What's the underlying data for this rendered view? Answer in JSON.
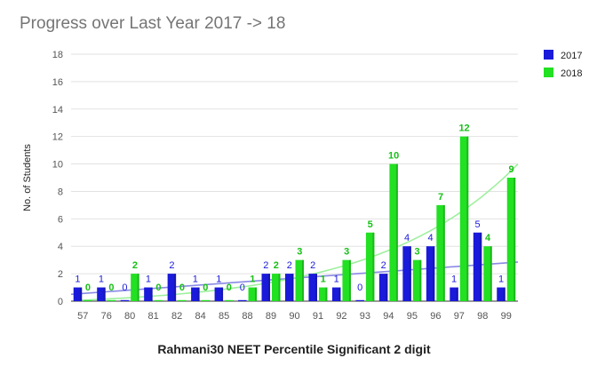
{
  "chart_data": {
    "type": "bar",
    "title": "Progress over Last Year 2017 -> 18",
    "xlabel": "Rahmani30 NEET Percentile Significant 2 digit",
    "ylabel": "No. of Students",
    "ylim": [
      0,
      18
    ],
    "yticks": [
      0,
      2,
      4,
      6,
      8,
      10,
      12,
      14,
      16,
      18
    ],
    "grid": true,
    "legend_position": "right",
    "categories": [
      "57",
      "76",
      "80",
      "81",
      "82",
      "84",
      "85",
      "88",
      "89",
      "90",
      "91",
      "92",
      "93",
      "94",
      "95",
      "96",
      "97",
      "98",
      "99"
    ],
    "series": [
      {
        "name": "2017",
        "color": "#1a1adb",
        "label_color": "#1a1adb",
        "values": [
          1,
          1,
          0,
          1,
          2,
          1,
          1,
          0,
          2,
          2,
          2,
          1,
          0,
          2,
          4,
          4,
          1,
          5,
          1
        ],
        "trend_color": "#8a8ae6",
        "trend_start": 0.5,
        "trend_end": 2.85
      },
      {
        "name": "2018",
        "color": "#22e022",
        "label_color": "#16c016",
        "values": [
          0,
          0,
          2,
          0,
          0,
          0,
          0,
          1,
          2,
          3,
          1,
          3,
          5,
          10,
          3,
          7,
          12,
          4,
          9
        ],
        "trend_color": "#9ef09e"
      }
    ]
  }
}
